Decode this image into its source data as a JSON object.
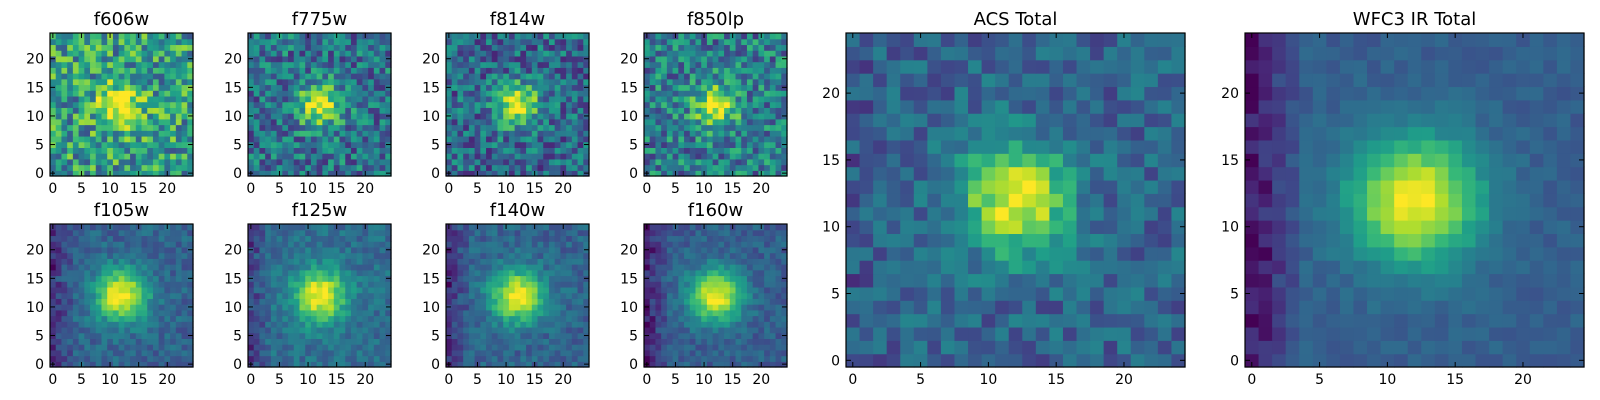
{
  "figure": {
    "colormap": "viridis",
    "colormap_stops": [
      "#440154",
      "#482878",
      "#3e4989",
      "#31688e",
      "#26828e",
      "#1f9e89",
      "#35b779",
      "#6ece58",
      "#b5de2b",
      "#fde725"
    ]
  },
  "chart_data": [
    {
      "type": "heatmap",
      "title": "f606w",
      "x_ticks": [
        "0",
        "5",
        "10",
        "15",
        "20"
      ],
      "y_ticks": [
        "0",
        "5",
        "10",
        "15",
        "20"
      ],
      "xlim": [
        -0.5,
        24.5
      ],
      "ylim": [
        -0.5,
        24.5
      ],
      "grid_size": 25,
      "source_center": [
        12,
        12
      ],
      "source_sigma": 2.6,
      "peak": 0.55,
      "background": 0.55,
      "noise": 0.3,
      "edge_dim": 0.0,
      "seed": 11
    },
    {
      "type": "heatmap",
      "title": "f775w",
      "x_ticks": [
        "0",
        "5",
        "10",
        "15",
        "20"
      ],
      "y_ticks": [
        "0",
        "5",
        "10",
        "15",
        "20"
      ],
      "xlim": [
        -0.5,
        24.5
      ],
      "ylim": [
        -0.5,
        24.5
      ],
      "grid_size": 25,
      "source_center": [
        12,
        12
      ],
      "source_sigma": 2.6,
      "peak": 0.62,
      "background": 0.38,
      "noise": 0.25,
      "edge_dim": 0.0,
      "seed": 23
    },
    {
      "type": "heatmap",
      "title": "f814w",
      "x_ticks": [
        "0",
        "5",
        "10",
        "15",
        "20"
      ],
      "y_ticks": [
        "0",
        "5",
        "10",
        "15",
        "20"
      ],
      "xlim": [
        -0.5,
        24.5
      ],
      "ylim": [
        -0.5,
        24.5
      ],
      "grid_size": 25,
      "source_center": [
        12,
        12
      ],
      "source_sigma": 2.6,
      "peak": 0.65,
      "background": 0.34,
      "noise": 0.24,
      "edge_dim": 0.0,
      "seed": 37
    },
    {
      "type": "heatmap",
      "title": "f850lp",
      "x_ticks": [
        "0",
        "5",
        "10",
        "15",
        "20"
      ],
      "y_ticks": [
        "0",
        "5",
        "10",
        "15",
        "20"
      ],
      "xlim": [
        -0.5,
        24.5
      ],
      "ylim": [
        -0.5,
        24.5
      ],
      "grid_size": 25,
      "source_center": [
        12,
        12
      ],
      "source_sigma": 2.6,
      "peak": 0.55,
      "background": 0.42,
      "noise": 0.26,
      "edge_dim": 0.0,
      "seed": 41
    },
    {
      "type": "heatmap",
      "title": "f105w",
      "x_ticks": [
        "0",
        "5",
        "10",
        "15",
        "20"
      ],
      "y_ticks": [
        "0",
        "5",
        "10",
        "15",
        "20"
      ],
      "xlim": [
        -0.5,
        24.5
      ],
      "ylim": [
        -0.5,
        24.5
      ],
      "grid_size": 25,
      "source_center": [
        12,
        12
      ],
      "source_sigma": 3.2,
      "peak": 0.7,
      "background": 0.32,
      "noise": 0.1,
      "edge_dim": 0.18,
      "seed": 53
    },
    {
      "type": "heatmap",
      "title": "f125w",
      "x_ticks": [
        "0",
        "5",
        "10",
        "15",
        "20"
      ],
      "y_ticks": [
        "0",
        "5",
        "10",
        "15",
        "20"
      ],
      "xlim": [
        -0.5,
        24.5
      ],
      "ylim": [
        -0.5,
        24.5
      ],
      "grid_size": 25,
      "source_center": [
        12,
        12
      ],
      "source_sigma": 3.2,
      "peak": 0.66,
      "background": 0.36,
      "noise": 0.1,
      "edge_dim": 0.15,
      "seed": 67
    },
    {
      "type": "heatmap",
      "title": "f140w",
      "x_ticks": [
        "0",
        "5",
        "10",
        "15",
        "20"
      ],
      "y_ticks": [
        "0",
        "5",
        "10",
        "15",
        "20"
      ],
      "xlim": [
        -0.5,
        24.5
      ],
      "ylim": [
        -0.5,
        24.5
      ],
      "grid_size": 25,
      "source_center": [
        12,
        12
      ],
      "source_sigma": 3.2,
      "peak": 0.68,
      "background": 0.32,
      "noise": 0.1,
      "edge_dim": 0.18,
      "seed": 71
    },
    {
      "type": "heatmap",
      "title": "f160w",
      "x_ticks": [
        "0",
        "5",
        "10",
        "15",
        "20"
      ],
      "y_ticks": [
        "0",
        "5",
        "10",
        "15",
        "20"
      ],
      "xlim": [
        -0.5,
        24.5
      ],
      "ylim": [
        -0.5,
        24.5
      ],
      "grid_size": 25,
      "source_center": [
        12,
        12
      ],
      "source_sigma": 3.2,
      "peak": 0.7,
      "background": 0.3,
      "noise": 0.09,
      "edge_dim": 0.22,
      "seed": 83
    },
    {
      "type": "heatmap",
      "title": "ACS Total",
      "x_ticks": [
        "0",
        "5",
        "10",
        "15",
        "20"
      ],
      "y_ticks": [
        "0",
        "5",
        "10",
        "15",
        "20"
      ],
      "xlim": [
        -0.5,
        24.5
      ],
      "ylim": [
        -0.5,
        24.5
      ],
      "grid_size": 25,
      "source_center": [
        12,
        12
      ],
      "source_sigma": 2.8,
      "peak": 0.68,
      "background": 0.32,
      "noise": 0.14,
      "edge_dim": 0.05,
      "seed": 97
    },
    {
      "type": "heatmap",
      "title": "WFC3 IR Total",
      "x_ticks": [
        "0",
        "5",
        "10",
        "15",
        "20"
      ],
      "y_ticks": [
        "0",
        "5",
        "10",
        "15",
        "20"
      ],
      "xlim": [
        -0.5,
        24.5
      ],
      "ylim": [
        -0.5,
        24.5
      ],
      "grid_size": 25,
      "source_center": [
        12,
        12
      ],
      "source_sigma": 3.4,
      "peak": 0.7,
      "background": 0.3,
      "noise": 0.05,
      "edge_dim": 0.25,
      "seed": 101
    }
  ]
}
